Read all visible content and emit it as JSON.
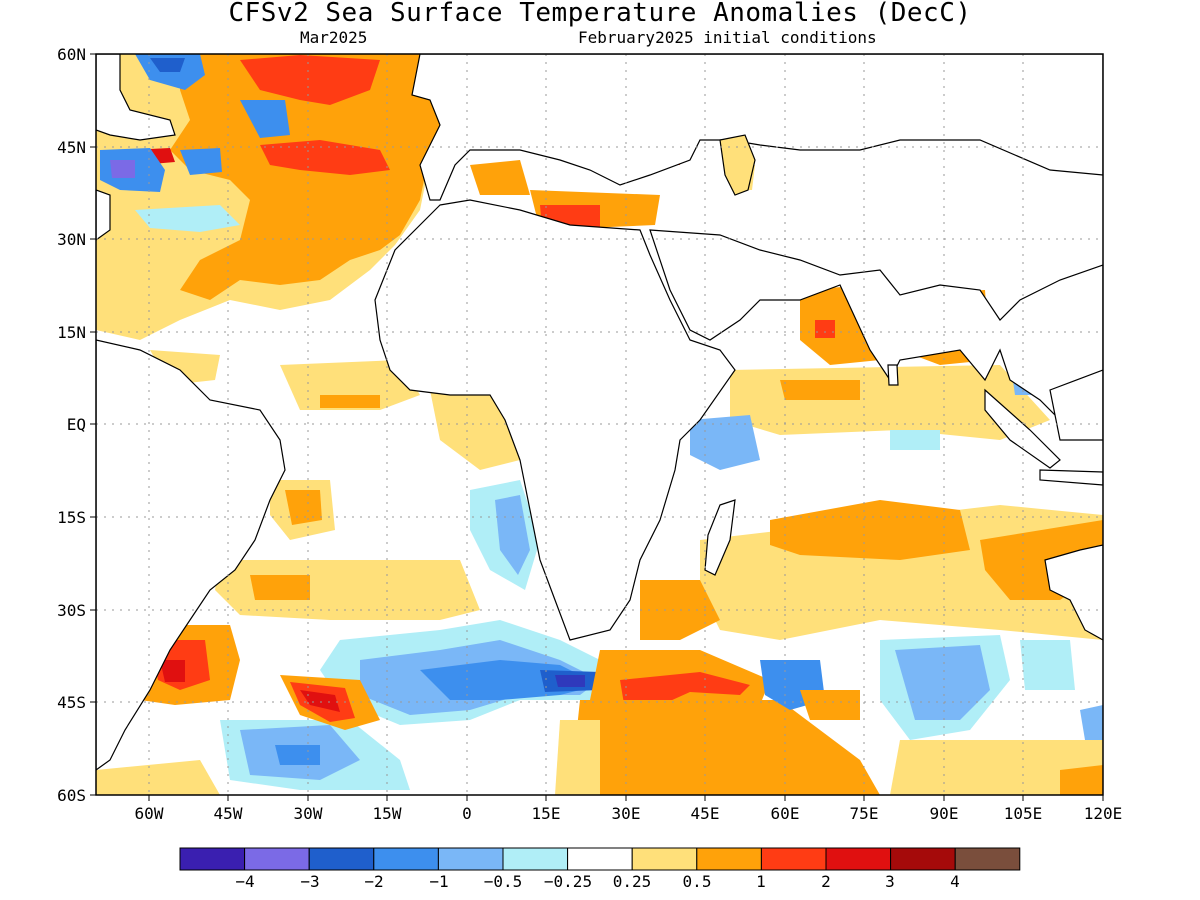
{
  "header": {
    "title": "CFSv2 Sea Surface Temperature Anomalies (DecC)",
    "subtitle_left": "Mar2025",
    "subtitle_right": "February2025 initial conditions"
  },
  "lat_labels": [
    "60N",
    "45N",
    "30N",
    "15N",
    "EQ",
    "15S",
    "30S",
    "45S",
    "60S"
  ],
  "lon_labels": [
    "60W",
    "45W",
    "30W",
    "15W",
    "0",
    "15E",
    "30E",
    "45E",
    "60E",
    "75E",
    "90E",
    "105E",
    "120E"
  ],
  "colorbar": {
    "colors": [
      "#3a1fb0",
      "#7b6ae6",
      "#1f5fcc",
      "#3d8fee",
      "#7ab7f7",
      "#b0eef7",
      "#ffffff",
      "#ffe07a",
      "#ffa20a",
      "#ff3c14",
      "#e01010",
      "#a50a0a",
      "#7a4e3c"
    ],
    "labels": [
      "−4",
      "−3",
      "−2",
      "−1",
      "−0.5",
      "−0.25",
      "0.25",
      "0.5",
      "1",
      "2",
      "3",
      "4"
    ]
  },
  "map_extent": {
    "lon_min": -70,
    "lon_max": 120,
    "lat_min": -60,
    "lat_max": 60
  }
}
